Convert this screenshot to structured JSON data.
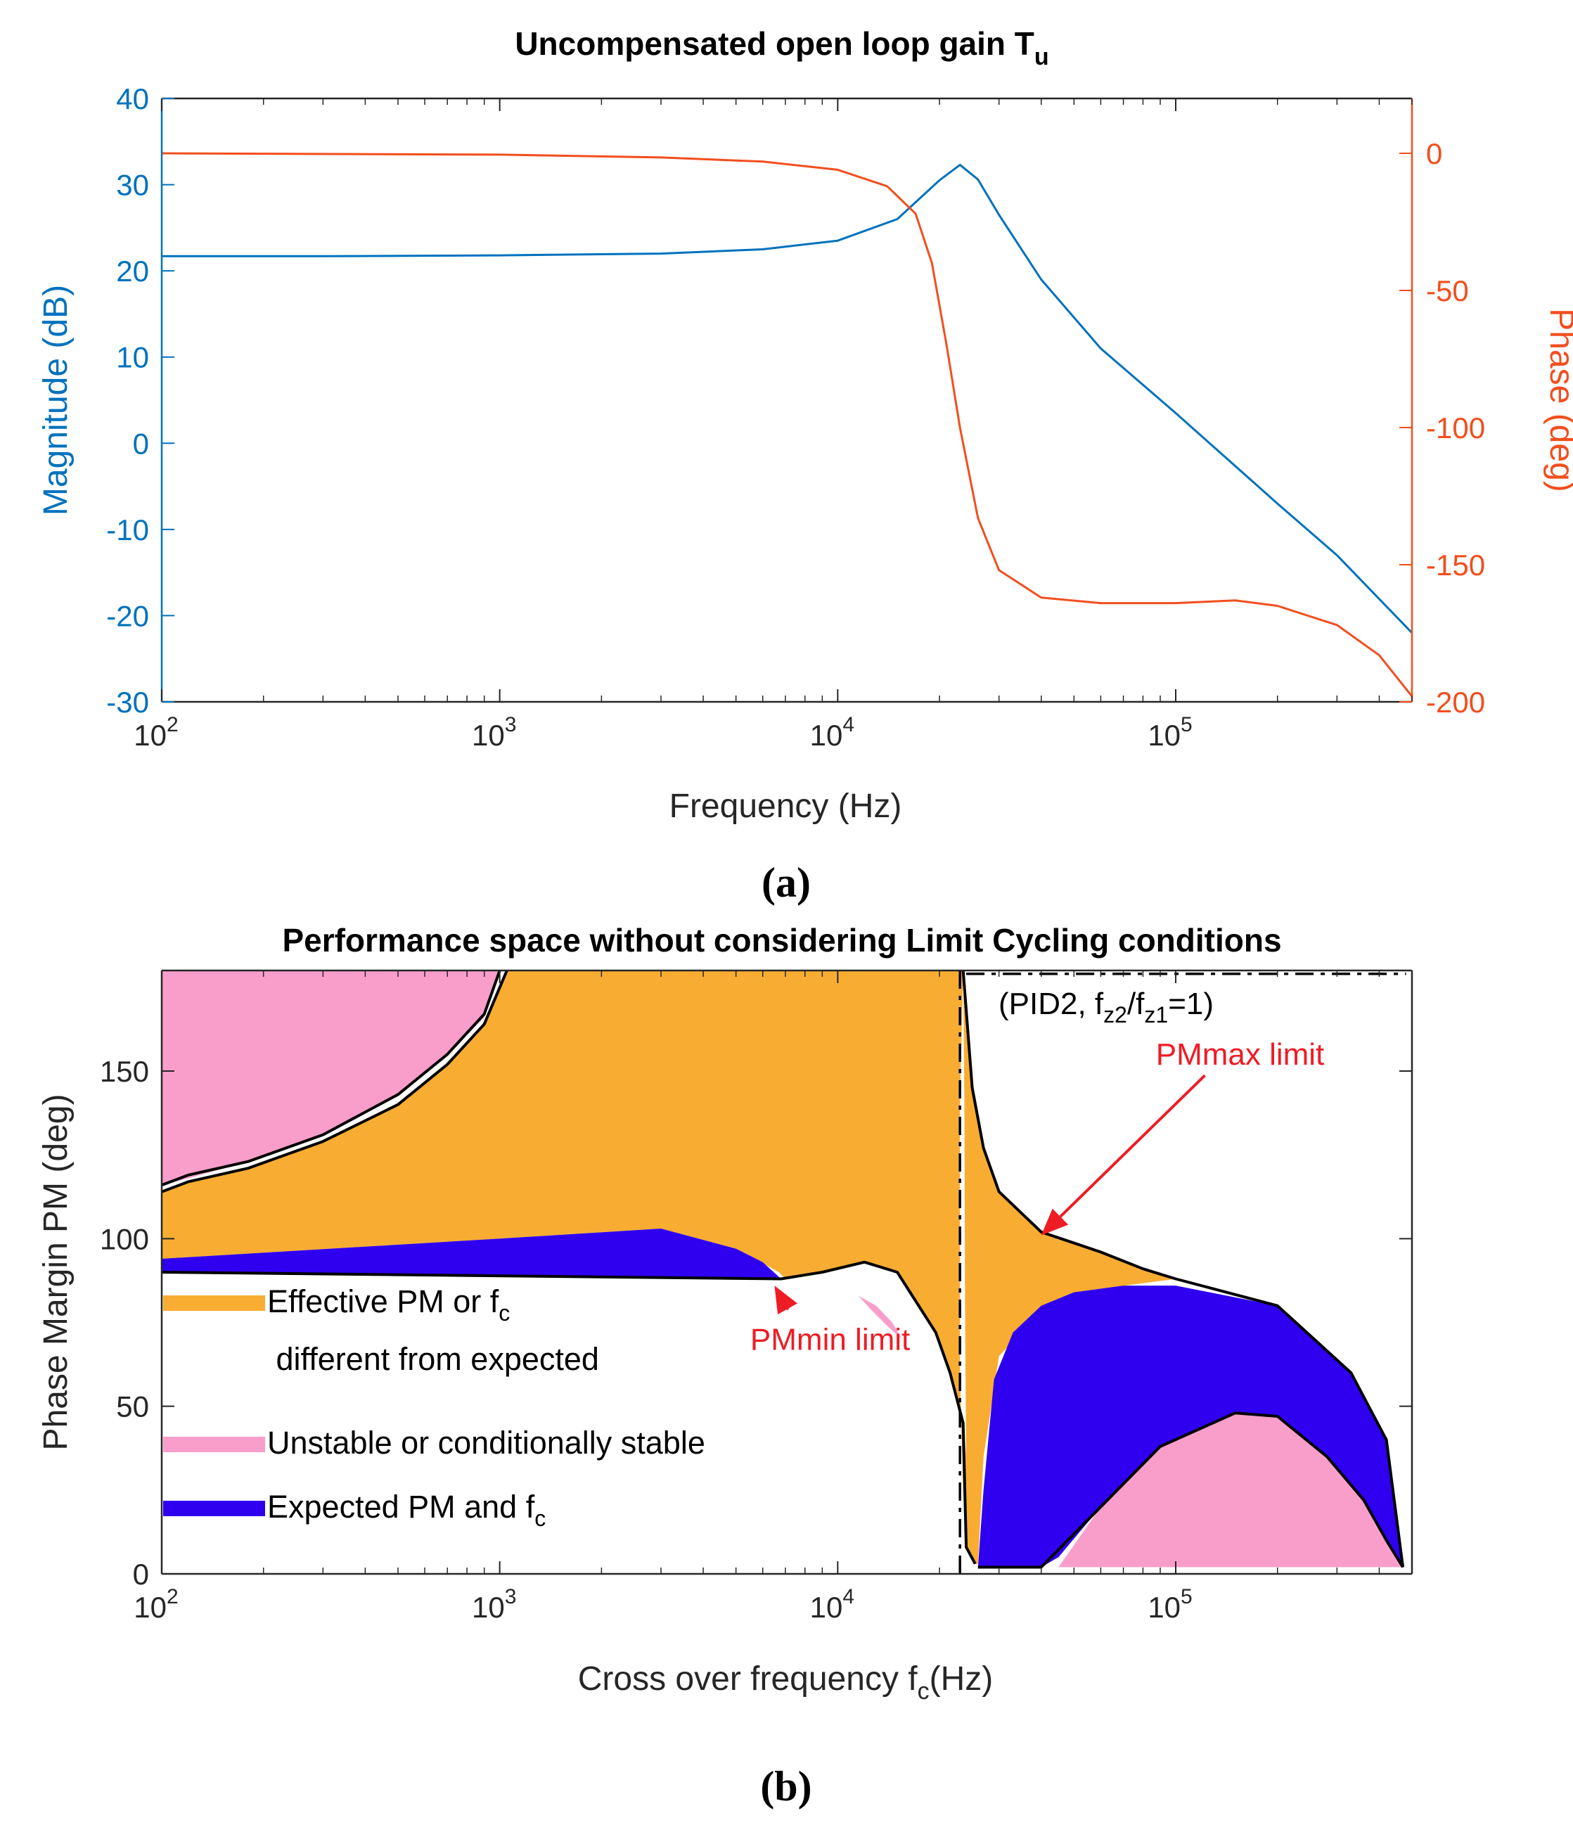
{
  "colors": {
    "blue": "#0072BD",
    "orange": "#F24E1E",
    "effective": "#F8AD32",
    "unstable": "#F99ECB",
    "expected": "#2F00F0",
    "annotation": "#EE1C25",
    "axis_gray": "#262626"
  },
  "chart_data": [
    {
      "type": "line",
      "panel_label": "(a)",
      "title": "Uncompensated open loop gain T",
      "title_subscript": "u",
      "xlabel": "Frequency (Hz)",
      "xscale": "log",
      "xlim": [
        100,
        500000
      ],
      "x_tick_labels": [
        {
          "base": "10",
          "exp": "2"
        },
        {
          "base": "10",
          "exp": "3"
        },
        {
          "base": "10",
          "exp": "4"
        },
        {
          "base": "10",
          "exp": "5"
        }
      ],
      "ylabel_left": "Magnitude (dB)",
      "ylim_left": [
        -30,
        40
      ],
      "y_ticks_left": [
        "-30",
        "-20",
        "-10",
        "0",
        "10",
        "20",
        "30",
        "40"
      ],
      "ylabel_right": "Phase (deg)",
      "ylim_right": [
        -200,
        20
      ],
      "y_ticks_right": [
        "-200",
        "-150",
        "-100",
        "-50",
        "0"
      ],
      "grid": false,
      "series": [
        {
          "name": "Magnitude",
          "axis": "left",
          "color": "blue",
          "x": [
            100,
            300,
            1000,
            3000,
            6000,
            10000,
            15000,
            20000,
            23000,
            26000,
            30000,
            40000,
            60000,
            100000,
            200000,
            300000,
            500000
          ],
          "y": [
            21.7,
            21.7,
            21.8,
            22.0,
            22.5,
            23.5,
            26.0,
            30.5,
            32.3,
            30.6,
            26.5,
            19.0,
            11.0,
            3.5,
            -7.0,
            -13.0,
            -22.0
          ]
        },
        {
          "name": "Phase",
          "axis": "right",
          "color": "orange",
          "x": [
            100,
            1000,
            3000,
            6000,
            10000,
            14000,
            17000,
            19000,
            21000,
            23000,
            26000,
            30000,
            40000,
            60000,
            100000,
            150000,
            200000,
            300000,
            400000,
            500000
          ],
          "y": [
            0,
            -0.5,
            -1.5,
            -3,
            -6,
            -12,
            -22,
            -40,
            -70,
            -100,
            -133,
            -152,
            -162,
            -164,
            -164,
            -163,
            -165,
            -172,
            -183,
            -198
          ]
        }
      ]
    },
    {
      "type": "contour",
      "panel_label": "(b)",
      "title": "Performance space without considering Limit Cycling conditions",
      "xlabel": "Cross over frequency f",
      "xlabel_sub": "c",
      "xlabel_tail": "(Hz)",
      "xscale": "log",
      "xlim": [
        100,
        500000
      ],
      "x_tick_labels": [
        {
          "base": "10",
          "exp": "2"
        },
        {
          "base": "10",
          "exp": "3"
        },
        {
          "base": "10",
          "exp": "4"
        },
        {
          "base": "10",
          "exp": "5"
        }
      ],
      "ylabel": "Phase Margin PM (deg)",
      "ylim": [
        0,
        180
      ],
      "y_ticks": [
        "0",
        "50",
        "100",
        "150"
      ],
      "note": {
        "pre": "(PID2, f",
        "s1": "z2",
        "mid": "/f",
        "s2": "z1",
        "post": "=1)"
      },
      "legend": [
        {
          "color": "effective",
          "line1_pre": "Effective PM or f",
          "line1_sub": "c",
          "line2": " different from expected"
        },
        {
          "color": "unstable",
          "line1_pre": "Unstable or conditionally stable",
          "line1_sub": "",
          "line2": ""
        },
        {
          "color": "expected",
          "line1_pre": "Expected PM and f",
          "line1_sub": "c",
          "line2": ""
        }
      ],
      "annotations": [
        {
          "text": "PMmax limit",
          "x": 155000,
          "y": 155,
          "arrow_to": [
            40000,
            101
          ]
        },
        {
          "text": "PMmin limit",
          "x": 9500,
          "y": 70,
          "arrow_to": [
            6500,
            86
          ]
        }
      ],
      "regions": [
        {
          "name": "unstable-top-left",
          "color": "unstable",
          "points": [
            [
              100,
              180
            ],
            [
              1000,
              180
            ],
            [
              900,
              166
            ],
            [
              700,
              155
            ],
            [
              500,
              143
            ],
            [
              300,
              131
            ],
            [
              180,
              123
            ],
            [
              120,
              118
            ],
            [
              100,
              116
            ]
          ]
        },
        {
          "name": "effective-left",
          "color": "effective",
          "points": [
            [
              100,
              114
            ],
            [
              120,
              117
            ],
            [
              180,
              121
            ],
            [
              300,
              129
            ],
            [
              500,
              140
            ],
            [
              700,
              152
            ],
            [
              900,
              164
            ],
            [
              1050,
              180
            ],
            [
              23500,
              180
            ],
            [
              23000,
              140
            ],
            [
              23000,
              60
            ],
            [
              23500,
              25
            ],
            [
              24000,
              8
            ],
            [
              25500,
              3
            ],
            [
              25000,
              15
            ],
            [
              23500,
              45
            ],
            [
              21500,
              60
            ],
            [
              19500,
              72
            ],
            [
              15000,
              90
            ],
            [
              12000,
              93
            ],
            [
              9000,
              90
            ],
            [
              7000,
              88
            ],
            [
              6700,
              90
            ],
            [
              5000,
              97
            ],
            [
              3000,
              103
            ],
            [
              1000,
              100
            ],
            [
              100,
              94
            ]
          ]
        },
        {
          "name": "effective-right",
          "color": "effective",
          "points": [
            [
              23500,
              180
            ],
            [
              25000,
              145
            ],
            [
              27000,
              127
            ],
            [
              30000,
              114
            ],
            [
              40000,
              102
            ],
            [
              60000,
              96
            ],
            [
              80000,
              91
            ],
            [
              100000,
              88
            ],
            [
              60000,
              85
            ],
            [
              40000,
              78
            ],
            [
              30000,
              65
            ],
            [
              27000,
              35
            ],
            [
              26000,
              3
            ],
            [
              25500,
              3
            ],
            [
              24500,
              10
            ],
            [
              24000,
              30
            ],
            [
              23800,
              80
            ],
            [
              23700,
              140
            ]
          ]
        },
        {
          "name": "expected-left",
          "color": "expected",
          "points": [
            [
              100,
              94
            ],
            [
              1000,
              100
            ],
            [
              3000,
              103
            ],
            [
              5000,
              97
            ],
            [
              6000,
              93
            ],
            [
              6800,
              88
            ],
            [
              100,
              90
            ]
          ]
        },
        {
          "name": "expected-right",
          "color": "expected",
          "points": [
            [
              26000,
              2
            ],
            [
              40000,
              2
            ],
            [
              45000,
              5
            ],
            [
              60000,
              20
            ],
            [
              90000,
              38
            ],
            [
              150000,
              48
            ],
            [
              200000,
              47
            ],
            [
              280000,
              35
            ],
            [
              360000,
              22
            ],
            [
              420000,
              10
            ],
            [
              470000,
              2
            ],
            [
              420000,
              40
            ],
            [
              330000,
              60
            ],
            [
              200000,
              80
            ],
            [
              100000,
              86
            ],
            [
              70000,
              86
            ],
            [
              50000,
              84
            ],
            [
              40000,
              80
            ],
            [
              33000,
              72
            ],
            [
              29000,
              58
            ],
            [
              27000,
              25
            ]
          ]
        },
        {
          "name": "unstable-bottom-right",
          "color": "unstable",
          "points": [
            [
              45000,
              2
            ],
            [
              470000,
              2
            ],
            [
              420000,
              10
            ],
            [
              360000,
              22
            ],
            [
              280000,
              35
            ],
            [
              200000,
              47
            ],
            [
              150000,
              48
            ],
            [
              90000,
              38
            ],
            [
              60000,
              20
            ]
          ]
        },
        {
          "name": "unstable-small",
          "color": "unstable",
          "points": [
            [
              11500,
              83
            ],
            [
              13000,
              80
            ],
            [
              14500,
              75
            ],
            [
              15500,
              70
            ],
            [
              14000,
              74
            ],
            [
              12500,
              79
            ]
          ]
        }
      ],
      "boundaries": [
        {
          "name": "pmmin-line",
          "style": "solid",
          "points": [
            [
              100,
              90
            ],
            [
              6800,
              88
            ],
            [
              9000,
              90
            ],
            [
              12000,
              93
            ],
            [
              15000,
              90
            ],
            [
              19500,
              72
            ],
            [
              21500,
              60
            ],
            [
              23500,
              45
            ],
            [
              24000,
              8
            ],
            [
              25500,
              3
            ]
          ]
        },
        {
          "name": "pmmax-curve",
          "style": "solid",
          "points": [
            [
              23500,
              180
            ],
            [
              25000,
              145
            ],
            [
              27000,
              127
            ],
            [
              30000,
              114
            ],
            [
              40000,
              102
            ],
            [
              60000,
              96
            ],
            [
              80000,
              91
            ],
            [
              100000,
              88
            ],
            [
              200000,
              80
            ],
            [
              330000,
              60
            ],
            [
              420000,
              40
            ],
            [
              470000,
              2
            ]
          ]
        },
        {
          "name": "top-left-contour",
          "style": "solid",
          "points": [
            [
              100,
              114
            ],
            [
              120,
              117
            ],
            [
              180,
              121
            ],
            [
              300,
              129
            ],
            [
              500,
              140
            ],
            [
              700,
              152
            ],
            [
              900,
              164
            ],
            [
              1050,
              180
            ]
          ]
        },
        {
          "name": "top-left-contour-2",
          "style": "solid",
          "points": [
            [
              100,
              116
            ],
            [
              120,
              119
            ],
            [
              180,
              123
            ],
            [
              300,
              131
            ],
            [
              500,
              143
            ],
            [
              700,
              155
            ],
            [
              900,
              167
            ],
            [
              1000,
              180
            ]
          ]
        },
        {
          "name": "inner-pink-boundary",
          "style": "solid",
          "points": [
            [
              26000,
              2
            ],
            [
              40000,
              2
            ],
            [
              60000,
              20
            ],
            [
              90000,
              38
            ],
            [
              150000,
              48
            ],
            [
              200000,
              47
            ],
            [
              280000,
              35
            ],
            [
              360000,
              22
            ],
            [
              420000,
              10
            ],
            [
              470000,
              2
            ]
          ]
        },
        {
          "name": "vertical-dashdot",
          "style": "dashdot",
          "points": [
            [
              23000,
              180
            ],
            [
              23000,
              0
            ]
          ]
        },
        {
          "name": "top-right-dashdot",
          "style": "dashdot",
          "points": [
            [
              24000,
              179
            ],
            [
              480000,
              179
            ]
          ]
        }
      ]
    }
  ]
}
